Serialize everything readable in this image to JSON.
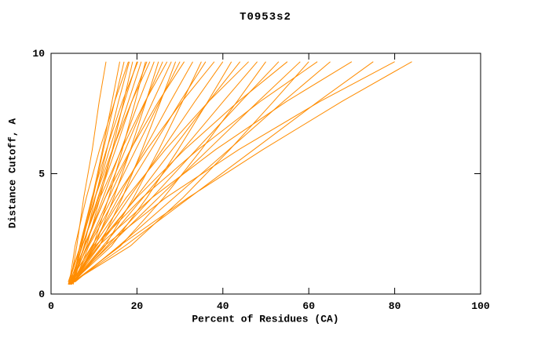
{
  "chart_data": {
    "type": "line",
    "title": "T0953s2",
    "xlabel": "Percent of Residues (CA)",
    "ylabel": "Distance Cutoff, A",
    "xlim": [
      0,
      100
    ],
    "ylim": [
      0,
      10
    ],
    "x_ticks": [
      0,
      20,
      40,
      60,
      80,
      100
    ],
    "y_ticks": [
      0,
      5,
      10
    ],
    "grid": false,
    "legend": "none",
    "line_color": "#ff8c00",
    "axis_color": "#000000",
    "background_color": "#ffffff",
    "series": [
      [
        [
          4.5,
          0.5
        ],
        [
          6.0,
          2
        ],
        [
          7.6,
          4
        ],
        [
          9.6,
          6
        ],
        [
          11.2,
          8
        ],
        [
          12.8,
          9.65
        ]
      ],
      [
        [
          4.0,
          0.4
        ],
        [
          6.9,
          2
        ],
        [
          9.6,
          4
        ],
        [
          12.0,
          6
        ],
        [
          14.2,
          8
        ],
        [
          16,
          9.65
        ]
      ],
      [
        [
          5.0,
          0.5
        ],
        [
          7.1,
          2
        ],
        [
          9.8,
          4
        ],
        [
          12.2,
          6
        ],
        [
          14.8,
          8
        ],
        [
          17,
          9.65
        ]
      ],
      [
        [
          4.2,
          0.4
        ],
        [
          5.6,
          2
        ],
        [
          8.2,
          4
        ],
        [
          11.3,
          6
        ],
        [
          14.8,
          8
        ],
        [
          18,
          9.65
        ]
      ],
      [
        [
          5.5,
          0.6
        ],
        [
          7.7,
          2
        ],
        [
          10.3,
          4
        ],
        [
          13.0,
          6
        ],
        [
          15.7,
          8
        ],
        [
          18.2,
          9.65
        ]
      ],
      [
        [
          4.8,
          0.4
        ],
        [
          8.3,
          2
        ],
        [
          11.4,
          4
        ],
        [
          14.3,
          6
        ],
        [
          16.9,
          8
        ],
        [
          19,
          9.65
        ]
      ],
      [
        [
          4.0,
          0.5
        ],
        [
          6.8,
          2
        ],
        [
          10.2,
          4
        ],
        [
          13.6,
          6
        ],
        [
          17.1,
          8
        ],
        [
          20,
          9.65
        ]
      ],
      [
        [
          5.2,
          0.4
        ],
        [
          6.7,
          2
        ],
        [
          9.5,
          4
        ],
        [
          12.9,
          6
        ],
        [
          16.6,
          8
        ],
        [
          20.2,
          9.65
        ]
      ],
      [
        [
          4.5,
          0.5
        ],
        [
          7.3,
          2
        ],
        [
          10.9,
          4
        ],
        [
          14.4,
          6
        ],
        [
          18.0,
          8
        ],
        [
          21,
          9.65
        ]
      ],
      [
        [
          5.8,
          0.6
        ],
        [
          9.8,
          2
        ],
        [
          13.4,
          4
        ],
        [
          16.6,
          6
        ],
        [
          19.6,
          8
        ],
        [
          22,
          9.65
        ]
      ],
      [
        [
          4.3,
          0.4
        ],
        [
          7.3,
          2
        ],
        [
          11.1,
          4
        ],
        [
          15.0,
          6
        ],
        [
          18.8,
          8
        ],
        [
          22.3,
          9.65
        ]
      ],
      [
        [
          5.0,
          0.5
        ],
        [
          6.8,
          2
        ],
        [
          10.2,
          4
        ],
        [
          14.3,
          6
        ],
        [
          18.8,
          8
        ],
        [
          23,
          9.65
        ]
      ],
      [
        [
          4.6,
          0.4
        ],
        [
          7.9,
          2
        ],
        [
          12.1,
          4
        ],
        [
          16.3,
          6
        ],
        [
          20.4,
          8
        ],
        [
          24,
          9.65
        ]
      ],
      [
        [
          5.4,
          0.5
        ],
        [
          10.2,
          2
        ],
        [
          14.6,
          4
        ],
        [
          18.5,
          6
        ],
        [
          22.1,
          8
        ],
        [
          25,
          9.65
        ]
      ],
      [
        [
          4.1,
          0.4
        ],
        [
          7.9,
          2
        ],
        [
          12.6,
          4
        ],
        [
          17.3,
          6
        ],
        [
          22.0,
          8
        ],
        [
          26,
          9.65
        ]
      ],
      [
        [
          5.0,
          0.5
        ],
        [
          7.2,
          2
        ],
        [
          11.4,
          4
        ],
        [
          16.4,
          6
        ],
        [
          21.9,
          8
        ],
        [
          27,
          9.65
        ]
      ],
      [
        [
          4.4,
          0.4
        ],
        [
          8.5,
          2
        ],
        [
          13.5,
          4
        ],
        [
          18.6,
          6
        ],
        [
          23.7,
          8
        ],
        [
          28,
          9.65
        ]
      ],
      [
        [
          5.6,
          0.6
        ],
        [
          11.3,
          2
        ],
        [
          16.6,
          4
        ],
        [
          21.2,
          6
        ],
        [
          25.5,
          8
        ],
        [
          29,
          9.65
        ]
      ],
      [
        [
          4.2,
          0.4
        ],
        [
          8.6,
          2
        ],
        [
          14.2,
          4
        ],
        [
          19.7,
          6
        ],
        [
          25.3,
          8
        ],
        [
          30,
          9.65
        ]
      ],
      [
        [
          5.1,
          0.5
        ],
        [
          7.7,
          2
        ],
        [
          12.6,
          4
        ],
        [
          18.5,
          6
        ],
        [
          25.0,
          8
        ],
        [
          31,
          9.65
        ]
      ],
      [
        [
          4.7,
          0.4
        ],
        [
          9.6,
          2
        ],
        [
          15.7,
          4
        ],
        [
          21.7,
          6
        ],
        [
          27.8,
          8
        ],
        [
          33,
          9.65
        ]
      ],
      [
        [
          5.3,
          0.5
        ],
        [
          12.6,
          2
        ],
        [
          19.2,
          4
        ],
        [
          25.1,
          6
        ],
        [
          30.6,
          8
        ],
        [
          35,
          9.65
        ]
      ],
      [
        [
          4.0,
          0.4
        ],
        [
          9.5,
          2
        ],
        [
          16.4,
          4
        ],
        [
          23.3,
          6
        ],
        [
          30.1,
          8
        ],
        [
          36,
          9.65
        ]
      ],
      [
        [
          5.5,
          0.5
        ],
        [
          8.8,
          2
        ],
        [
          15.0,
          4
        ],
        [
          22.3,
          6
        ],
        [
          30.5,
          8
        ],
        [
          38,
          9.65
        ]
      ],
      [
        [
          4.5,
          0.4
        ],
        [
          10.6,
          2
        ],
        [
          18.2,
          4
        ],
        [
          25.9,
          6
        ],
        [
          33.5,
          8
        ],
        [
          40,
          9.65
        ]
      ],
      [
        [
          5.0,
          0.5
        ],
        [
          14.1,
          2
        ],
        [
          22.3,
          4
        ],
        [
          29.6,
          6
        ],
        [
          36.5,
          8
        ],
        [
          42,
          9.65
        ]
      ],
      [
        [
          4.3,
          0.4
        ],
        [
          11.1,
          2
        ],
        [
          19.7,
          4
        ],
        [
          28.2,
          6
        ],
        [
          36.7,
          8
        ],
        [
          44,
          9.65
        ]
      ],
      [
        [
          5.8,
          0.6
        ],
        [
          9.9,
          2
        ],
        [
          17.5,
          4
        ],
        [
          26.6,
          6
        ],
        [
          36.7,
          8
        ],
        [
          46,
          9.65
        ]
      ],
      [
        [
          4.6,
          0.4
        ],
        [
          12.1,
          2
        ],
        [
          21.4,
          4
        ],
        [
          30.7,
          6
        ],
        [
          40.1,
          8
        ],
        [
          48,
          9.65
        ]
      ],
      [
        [
          5.2,
          0.5
        ],
        [
          16.2,
          2
        ],
        [
          26.2,
          4
        ],
        [
          35.0,
          6
        ],
        [
          43.3,
          8
        ],
        [
          50,
          9.65
        ]
      ],
      [
        [
          4.8,
          0.4
        ],
        [
          13.1,
          2
        ],
        [
          23.5,
          4
        ],
        [
          33.8,
          6
        ],
        [
          44.2,
          8
        ],
        [
          53,
          9.65
        ]
      ],
      [
        [
          5.5,
          0.5
        ],
        [
          10.5,
          2
        ],
        [
          19.9,
          4
        ],
        [
          31.1,
          6
        ],
        [
          43.6,
          8
        ],
        [
          55,
          9.65
        ]
      ],
      [
        [
          4.2,
          0.4
        ],
        [
          13.5,
          2
        ],
        [
          25.0,
          4
        ],
        [
          36.6,
          6
        ],
        [
          48.2,
          8
        ],
        [
          58,
          9.65
        ]
      ],
      [
        [
          5.0,
          0.5
        ],
        [
          18.5,
          2
        ],
        [
          30.7,
          4
        ],
        [
          41.6,
          6
        ],
        [
          51.8,
          8
        ],
        [
          60,
          9.65
        ]
      ],
      [
        [
          4.5,
          0.4
        ],
        [
          10.3,
          2
        ],
        [
          21.2,
          4
        ],
        [
          34.2,
          6
        ],
        [
          48.7,
          8
        ],
        [
          62,
          9.65
        ]
      ],
      [
        [
          5.6,
          0.5
        ],
        [
          15.8,
          2
        ],
        [
          28.6,
          4
        ],
        [
          41.4,
          6
        ],
        [
          54.1,
          8
        ],
        [
          65,
          9.65
        ]
      ],
      [
        [
          4.4,
          0.4
        ],
        [
          11.0,
          2
        ],
        [
          23.5,
          4
        ],
        [
          38.3,
          6
        ],
        [
          54.8,
          8
        ],
        [
          70,
          9.65
        ]
      ],
      [
        [
          5.2,
          0.5
        ],
        [
          17.2,
          2
        ],
        [
          32.2,
          4
        ],
        [
          47.2,
          6
        ],
        [
          62.2,
          8
        ],
        [
          75,
          9.65
        ]
      ],
      [
        [
          4.8,
          0.4
        ],
        [
          12.4,
          2
        ],
        [
          26.7,
          4
        ],
        [
          43.7,
          6
        ],
        [
          62.6,
          8
        ],
        [
          80,
          9.65
        ]
      ],
      [
        [
          5.5,
          0.5
        ],
        [
          15.9,
          2
        ],
        [
          31.9,
          4
        ],
        [
          49.3,
          6
        ],
        [
          67.7,
          8
        ],
        [
          84,
          9.65
        ]
      ]
    ]
  }
}
